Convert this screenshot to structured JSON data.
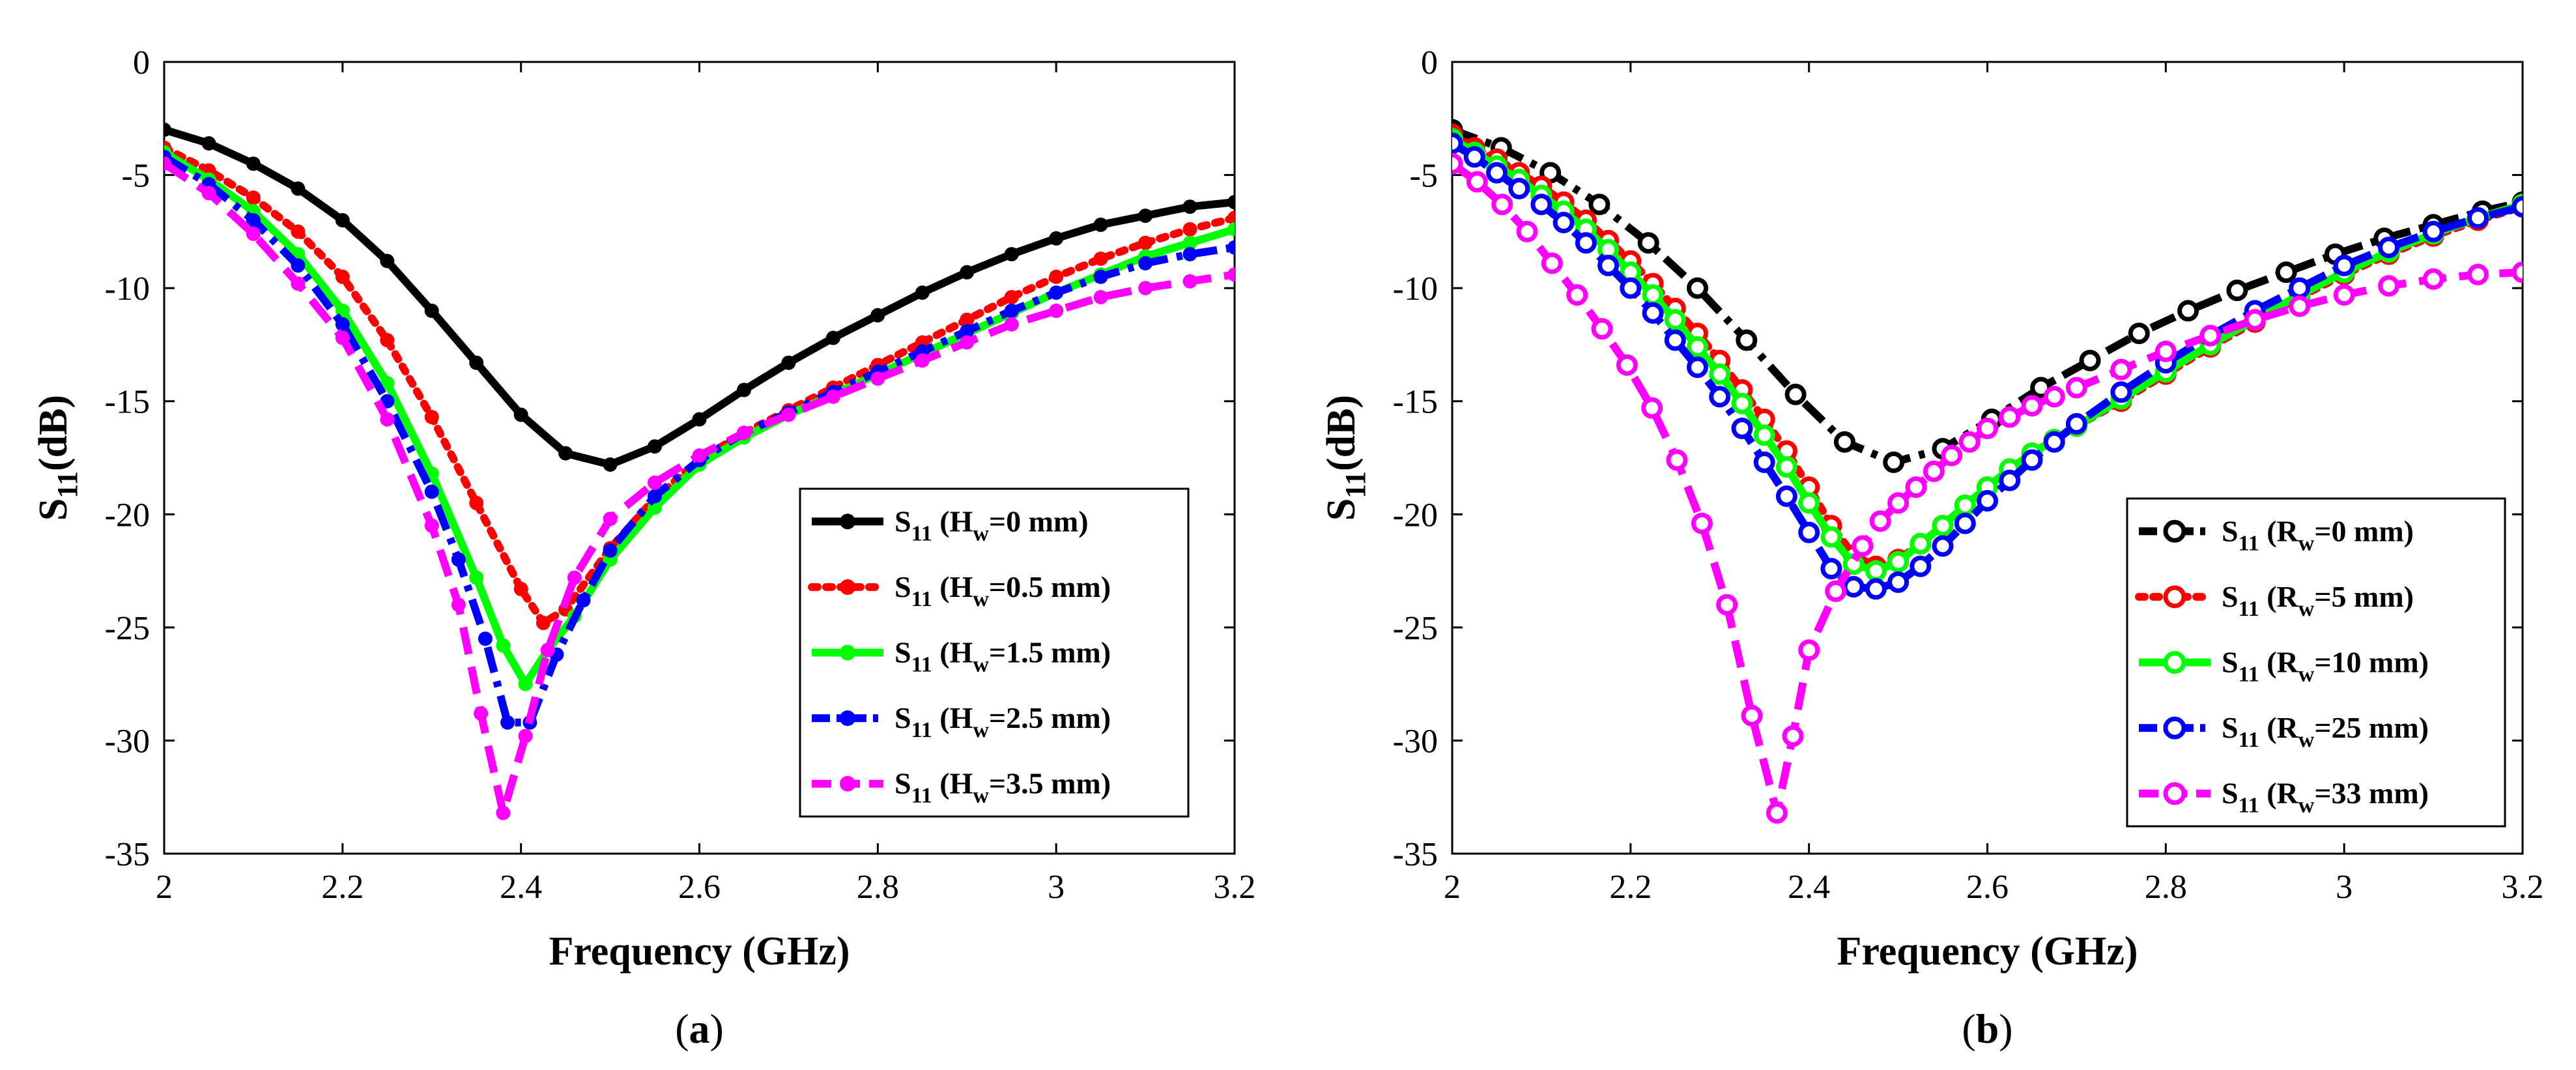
{
  "figure": {
    "panels": [
      {
        "id": "a",
        "caption": "(a)",
        "caption_letter": "a",
        "legend_prefix": "S",
        "legend_sub": "11",
        "legend_var": "H",
        "legend_var_sub": "w",
        "ylabel_main": "S",
        "ylabel_sub": "11",
        "ylabel_unit": "(dB)"
      },
      {
        "id": "b",
        "caption": "(b)",
        "caption_letter": "b",
        "legend_prefix": "S",
        "legend_sub": "11",
        "legend_var": "R",
        "legend_var_sub": "w",
        "ylabel_main": "S",
        "ylabel_sub": "11",
        "ylabel_unit": "(dB)"
      }
    ]
  },
  "chart_data": [
    {
      "type": "line",
      "title": "",
      "xlabel": "Frequency (GHz)",
      "ylabel": "S11(dB)",
      "xlim": [
        2,
        3.2
      ],
      "ylim": [
        -35,
        0
      ],
      "xticks": [
        "2",
        "2.2",
        "2.4",
        "2.6",
        "2.8",
        "3",
        "3.2"
      ],
      "yticks": [
        "0",
        "-5",
        "-10",
        "-15",
        "-20",
        "-25",
        "-30",
        "-35"
      ],
      "legend_position": "lower-right",
      "series": [
        {
          "name": "S11 (Hw=0 mm)",
          "legend_value": "=0 mm",
          "color": "#000000",
          "dash": "solid",
          "marker": "filled",
          "x": [
            2.0,
            2.05,
            2.1,
            2.15,
            2.2,
            2.25,
            2.3,
            2.35,
            2.4,
            2.45,
            2.5,
            2.55,
            2.6,
            2.65,
            2.7,
            2.75,
            2.8,
            2.85,
            2.9,
            2.95,
            3.0,
            3.05,
            3.1,
            3.15,
            3.2
          ],
          "y": [
            -3.0,
            -3.6,
            -4.5,
            -5.6,
            -7.0,
            -8.8,
            -11.0,
            -13.3,
            -15.6,
            -17.3,
            -17.8,
            -17.0,
            -15.8,
            -14.5,
            -13.3,
            -12.2,
            -11.2,
            -10.2,
            -9.3,
            -8.5,
            -7.8,
            -7.2,
            -6.8,
            -6.4,
            -6.2
          ]
        },
        {
          "name": "S11 (Hw=0.5 mm)",
          "legend_value": "=0.5 mm",
          "color": "#ff0000",
          "dash": "dotted",
          "marker": "filled",
          "x": [
            2.0,
            2.05,
            2.1,
            2.15,
            2.2,
            2.25,
            2.3,
            2.35,
            2.4,
            2.425,
            2.45,
            2.5,
            2.55,
            2.6,
            2.65,
            2.7,
            2.75,
            2.8,
            2.85,
            2.9,
            2.95,
            3.0,
            3.05,
            3.1,
            3.15,
            3.2
          ],
          "y": [
            -3.8,
            -4.8,
            -6.0,
            -7.5,
            -9.5,
            -12.3,
            -15.7,
            -19.5,
            -23.3,
            -24.8,
            -24.2,
            -21.5,
            -19.3,
            -17.6,
            -16.4,
            -15.4,
            -14.4,
            -13.4,
            -12.4,
            -11.4,
            -10.4,
            -9.5,
            -8.7,
            -8.0,
            -7.4,
            -6.9
          ]
        },
        {
          "name": "S11 (Hw=1.5 mm)",
          "legend_value": "=1.5 mm",
          "color": "#00ff00",
          "dash": "solid",
          "marker": "filled",
          "x": [
            2.0,
            2.05,
            2.1,
            2.15,
            2.2,
            2.25,
            2.3,
            2.35,
            2.38,
            2.405,
            2.43,
            2.46,
            2.5,
            2.55,
            2.6,
            2.65,
            2.7,
            2.75,
            2.8,
            2.85,
            2.9,
            2.95,
            3.0,
            3.05,
            3.1,
            3.15,
            3.2
          ],
          "y": [
            -4.0,
            -5.2,
            -6.6,
            -8.5,
            -11.0,
            -14.2,
            -18.2,
            -22.8,
            -25.8,
            -27.5,
            -26.0,
            -24.5,
            -22.0,
            -19.7,
            -17.8,
            -16.6,
            -15.6,
            -14.7,
            -13.8,
            -12.9,
            -12.0,
            -11.1,
            -10.2,
            -9.4,
            -8.6,
            -8.0,
            -7.4
          ]
        },
        {
          "name": "S11 (Hw=2.5 mm)",
          "legend_value": "=2.5 mm",
          "color": "#0000ff",
          "dash": "dashdot",
          "marker": "filled",
          "x": [
            2.0,
            2.05,
            2.1,
            2.15,
            2.2,
            2.25,
            2.3,
            2.33,
            2.36,
            2.385,
            2.41,
            2.44,
            2.47,
            2.5,
            2.55,
            2.6,
            2.65,
            2.7,
            2.75,
            2.8,
            2.85,
            2.9,
            2.95,
            3.0,
            3.05,
            3.1,
            3.15,
            3.2
          ],
          "y": [
            -4.2,
            -5.4,
            -7.0,
            -9.0,
            -11.6,
            -15.0,
            -19.0,
            -22.0,
            -25.5,
            -29.2,
            -29.2,
            -26.2,
            -23.8,
            -21.6,
            -19.2,
            -17.6,
            -16.4,
            -15.5,
            -14.6,
            -13.7,
            -12.8,
            -11.9,
            -11.0,
            -10.2,
            -9.5,
            -8.9,
            -8.5,
            -8.2
          ]
        },
        {
          "name": "S11 (Hw=3.5 mm)",
          "legend_value": "=3.5 mm",
          "color": "#ff00ff",
          "dash": "dashed",
          "marker": "filled",
          "x": [
            2.0,
            2.05,
            2.1,
            2.15,
            2.2,
            2.25,
            2.3,
            2.33,
            2.355,
            2.38,
            2.405,
            2.43,
            2.46,
            2.5,
            2.55,
            2.6,
            2.65,
            2.7,
            2.75,
            2.8,
            2.85,
            2.9,
            2.95,
            3.0,
            3.05,
            3.1,
            3.15,
            3.2
          ],
          "y": [
            -4.5,
            -5.8,
            -7.6,
            -9.8,
            -12.2,
            -15.8,
            -20.5,
            -24.0,
            -28.8,
            -33.2,
            -29.8,
            -26.0,
            -22.8,
            -20.2,
            -18.6,
            -17.4,
            -16.4,
            -15.6,
            -14.8,
            -14.0,
            -13.2,
            -12.4,
            -11.6,
            -11.0,
            -10.4,
            -10.0,
            -9.7,
            -9.4
          ]
        }
      ]
    },
    {
      "type": "line",
      "title": "",
      "xlabel": "Frequency (GHz)",
      "ylabel": "S11(dB)",
      "xlim": [
        2,
        3.2
      ],
      "ylim": [
        -35,
        0
      ],
      "xticks": [
        "2",
        "2.2",
        "2.4",
        "2.6",
        "2.8",
        "3",
        "3.2"
      ],
      "yticks": [
        "0",
        "-5",
        "-10",
        "-15",
        "-20",
        "-25",
        "-30",
        "-35"
      ],
      "legend_position": "lower-right",
      "series": [
        {
          "name": "S11 (Rw=0 mm)",
          "legend_value": "=0 mm",
          "color": "#000000",
          "dash": "dashdot",
          "marker": "open",
          "x": [
            2.0,
            2.055,
            2.11,
            2.165,
            2.22,
            2.275,
            2.33,
            2.385,
            2.44,
            2.495,
            2.55,
            2.605,
            2.66,
            2.715,
            2.77,
            2.825,
            2.88,
            2.935,
            2.99,
            3.045,
            3.1,
            3.155,
            3.2
          ],
          "y": [
            -3.0,
            -3.8,
            -4.9,
            -6.3,
            -8.0,
            -10.0,
            -12.3,
            -14.7,
            -16.8,
            -17.7,
            -17.1,
            -15.8,
            -14.4,
            -13.2,
            -12.0,
            -11.0,
            -10.1,
            -9.3,
            -8.5,
            -7.8,
            -7.2,
            -6.6,
            -6.2
          ]
        },
        {
          "name": "S11 (Rw=5 mm)",
          "legend_value": "=5 mm",
          "color": "#ff0000",
          "dash": "dotted",
          "marker": "open",
          "x": [
            2.0,
            2.025,
            2.05,
            2.075,
            2.1,
            2.125,
            2.15,
            2.175,
            2.2,
            2.225,
            2.25,
            2.275,
            2.3,
            2.325,
            2.35,
            2.375,
            2.4,
            2.425,
            2.45,
            2.475,
            2.5,
            2.525,
            2.55,
            2.575,
            2.6,
            2.625,
            2.65,
            2.675,
            2.7,
            2.75,
            2.8,
            2.85,
            2.9,
            2.95,
            3.0,
            3.05,
            3.1,
            3.15,
            3.2
          ],
          "y": [
            -3.2,
            -3.8,
            -4.3,
            -4.9,
            -5.5,
            -6.2,
            -7.0,
            -7.9,
            -8.8,
            -9.8,
            -10.9,
            -12.0,
            -13.2,
            -14.5,
            -15.8,
            -17.2,
            -18.8,
            -20.5,
            -21.8,
            -22.3,
            -22.0,
            -21.3,
            -20.5,
            -19.6,
            -18.8,
            -18.0,
            -17.3,
            -16.7,
            -16.1,
            -15.0,
            -13.8,
            -12.6,
            -11.5,
            -10.4,
            -9.4,
            -8.5,
            -7.7,
            -7.0,
            -6.4
          ]
        },
        {
          "name": "S11 (Rw=10 mm)",
          "legend_value": "=10 mm",
          "color": "#00ff00",
          "dash": "solid",
          "marker": "open",
          "x": [
            2.0,
            2.025,
            2.05,
            2.075,
            2.1,
            2.125,
            2.15,
            2.175,
            2.2,
            2.225,
            2.25,
            2.275,
            2.3,
            2.325,
            2.35,
            2.375,
            2.4,
            2.425,
            2.45,
            2.475,
            2.5,
            2.525,
            2.55,
            2.575,
            2.6,
            2.625,
            2.65,
            2.675,
            2.7,
            2.75,
            2.8,
            2.85,
            2.9,
            2.95,
            3.0,
            3.05,
            3.1,
            3.15,
            3.2
          ],
          "y": [
            -3.4,
            -4.0,
            -4.6,
            -5.2,
            -5.9,
            -6.6,
            -7.4,
            -8.3,
            -9.3,
            -10.3,
            -11.4,
            -12.6,
            -13.8,
            -15.1,
            -16.5,
            -17.9,
            -19.5,
            -21.0,
            -22.2,
            -22.5,
            -22.1,
            -21.3,
            -20.5,
            -19.6,
            -18.8,
            -18.0,
            -17.3,
            -16.7,
            -16.1,
            -14.9,
            -13.7,
            -12.5,
            -11.4,
            -10.3,
            -9.3,
            -8.4,
            -7.6,
            -6.9,
            -6.3
          ]
        },
        {
          "name": "S11 (Rw=25 mm)",
          "legend_value": "=25 mm",
          "color": "#0000ff",
          "dash": "dashdot",
          "marker": "open",
          "x": [
            2.0,
            2.025,
            2.05,
            2.075,
            2.1,
            2.125,
            2.15,
            2.175,
            2.2,
            2.225,
            2.25,
            2.275,
            2.3,
            2.325,
            2.35,
            2.375,
            2.4,
            2.425,
            2.45,
            2.475,
            2.5,
            2.525,
            2.55,
            2.575,
            2.6,
            2.625,
            2.65,
            2.675,
            2.7,
            2.75,
            2.8,
            2.85,
            2.9,
            2.95,
            3.0,
            3.05,
            3.1,
            3.15,
            3.2
          ],
          "y": [
            -3.6,
            -4.2,
            -4.9,
            -5.6,
            -6.3,
            -7.1,
            -8.0,
            -9.0,
            -10.0,
            -11.1,
            -12.3,
            -13.5,
            -14.8,
            -16.2,
            -17.7,
            -19.2,
            -20.8,
            -22.4,
            -23.2,
            -23.3,
            -23.0,
            -22.3,
            -21.4,
            -20.4,
            -19.4,
            -18.5,
            -17.6,
            -16.8,
            -16.0,
            -14.6,
            -13.3,
            -12.1,
            -11.0,
            -10.0,
            -9.0,
            -8.2,
            -7.5,
            -6.9,
            -6.4
          ]
        },
        {
          "name": "S11 (Rw=33 mm)",
          "legend_value": "=33 mm",
          "color": "#ff00ff",
          "dash": "dashed",
          "marker": "open",
          "x": [
            2.0,
            2.028,
            2.056,
            2.084,
            2.112,
            2.14,
            2.168,
            2.196,
            2.224,
            2.252,
            2.28,
            2.308,
            2.336,
            2.364,
            2.382,
            2.4,
            2.43,
            2.46,
            2.48,
            2.5,
            2.52,
            2.54,
            2.56,
            2.58,
            2.6,
            2.625,
            2.65,
            2.675,
            2.7,
            2.75,
            2.8,
            2.85,
            2.9,
            2.95,
            3.0,
            3.05,
            3.1,
            3.15,
            3.2
          ],
          "y": [
            -4.5,
            -5.3,
            -6.3,
            -7.5,
            -8.9,
            -10.3,
            -11.8,
            -13.4,
            -15.3,
            -17.6,
            -20.4,
            -24.0,
            -28.9,
            -33.2,
            -29.8,
            -26.0,
            -23.4,
            -21.4,
            -20.3,
            -19.5,
            -18.8,
            -18.1,
            -17.4,
            -16.8,
            -16.2,
            -15.7,
            -15.2,
            -14.8,
            -14.4,
            -13.6,
            -12.8,
            -12.1,
            -11.4,
            -10.8,
            -10.3,
            -9.9,
            -9.6,
            -9.4,
            -9.3
          ]
        }
      ]
    }
  ]
}
